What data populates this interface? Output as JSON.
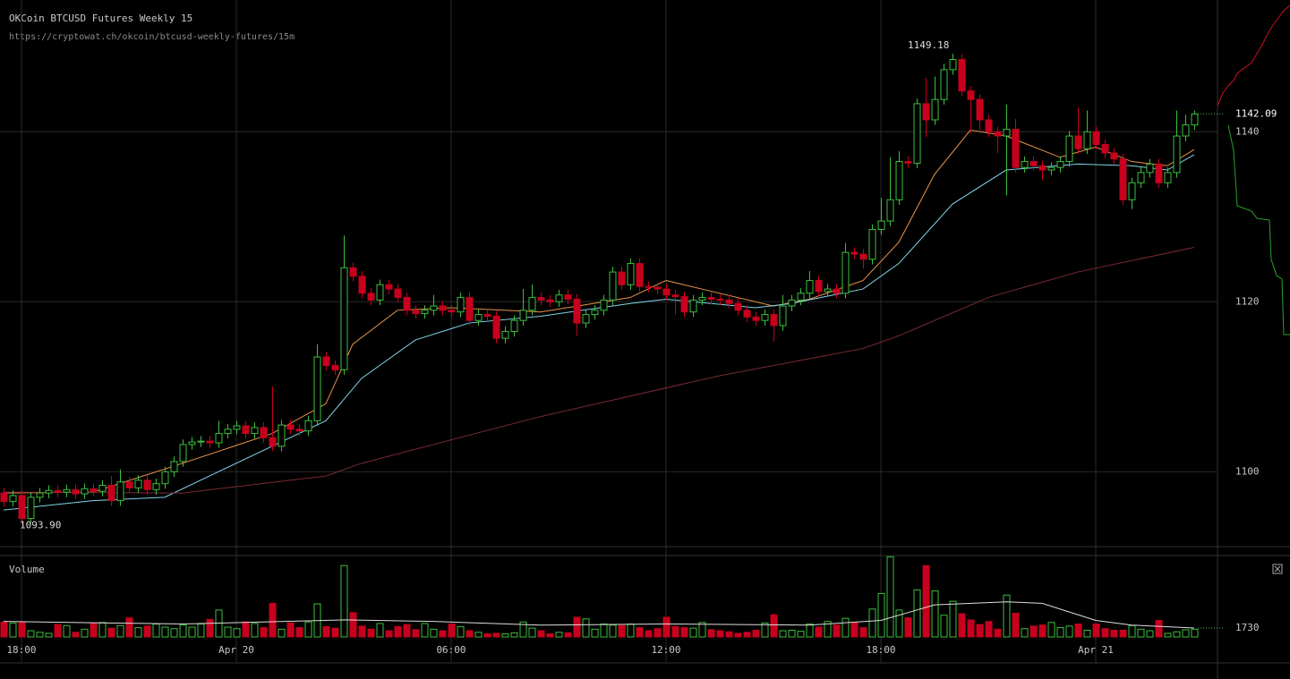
{
  "chart_data": {
    "type": "candlestick",
    "title": "OKCoin BTCUSD Futures Weekly 15",
    "subtitle": "https://cryptowat.ch/okcoin/btcusd-weekly-futures/15m",
    "volume_label": "Volume",
    "up_color": "#3cbf3c",
    "down_color": "#c8001e",
    "ylim": [
      1091.3,
      1155.5
    ],
    "yticks": [
      1100,
      1120,
      1140
    ],
    "grid": true,
    "vlim": [
      0,
      15570
    ],
    "xticks": [
      {
        "value": 2,
        "label": "18:00"
      },
      {
        "value": 26,
        "label": "Apr 20"
      },
      {
        "value": 50,
        "label": "06:00"
      },
      {
        "value": 74,
        "label": "12:00"
      },
      {
        "value": 98,
        "label": "18:00"
      },
      {
        "value": 122,
        "label": "Apr 21"
      }
    ],
    "extreme_labels": [
      {
        "index": 106,
        "value": 1149.18,
        "label": "1149.18"
      },
      {
        "index": 2,
        "value": 1093.9,
        "label": "1093.90"
      }
    ],
    "open": [
      1097.5,
      1096.5,
      1097.2,
      1094.5,
      1097.0,
      1097.5,
      1097.8,
      1097.6,
      1097.9,
      1097.4,
      1098.0,
      1097.7,
      1098.4,
      1096.6,
      1098.8,
      1098.1,
      1099.0,
      1097.9,
      1098.6,
      1100.0,
      1101.2,
      1103.2,
      1103.5,
      1103.6,
      1103.4,
      1104.5,
      1105.0,
      1105.4,
      1104.5,
      1105.2,
      1104.0,
      1103.0,
      1105.5,
      1105.0,
      1104.8,
      1106.0,
      1113.5,
      1112.5,
      1112.0,
      1124.0,
      1123.0,
      1121.0,
      1120.2,
      1122.0,
      1121.5,
      1120.5,
      1119.0,
      1118.6,
      1119.0,
      1119.5,
      1119.0,
      1118.8,
      1120.5,
      1117.8,
      1118.5,
      1118.3,
      1115.7,
      1116.5,
      1117.8,
      1119.0,
      1120.5,
      1120.2,
      1120.0,
      1120.8,
      1120.3,
      1117.5,
      1118.5,
      1119.0,
      1120.2,
      1123.5,
      1122.0,
      1124.5,
      1121.8,
      1121.7,
      1121.5,
      1120.8,
      1120.6,
      1118.8,
      1120.2,
      1120.5,
      1120.3,
      1120.2,
      1119.8,
      1119.0,
      1118.2,
      1117.8,
      1118.5,
      1117.2,
      1119.5,
      1120.2,
      1121.0,
      1122.5,
      1121.2,
      1121.5,
      1121.0,
      1125.8,
      1125.6,
      1125.0,
      1128.5,
      1129.5,
      1132.0,
      1136.5,
      1136.3,
      1143.3,
      1141.4,
      1143.8,
      1147.3,
      1148.5,
      1144.8,
      1143.8,
      1141.4,
      1140.0,
      1139.5,
      1140.3,
      1135.8,
      1136.5,
      1136.0,
      1135.5,
      1135.8,
      1136.5,
      1139.5,
      1138.0,
      1140.0,
      1138.5,
      1137.5,
      1136.8,
      1132.0,
      1134.0,
      1135.2,
      1136.2,
      1134.0,
      1135.2,
      1139.5,
      1140.8
    ],
    "high": [
      1098.1,
      1097.8,
      1097.8,
      1097.6,
      1098.1,
      1098.4,
      1098.4,
      1098.5,
      1098.5,
      1098.6,
      1098.6,
      1099.0,
      1099.5,
      1100.3,
      1099.4,
      1099.6,
      1099.6,
      1099.2,
      1100.6,
      1101.8,
      1103.8,
      1104.1,
      1104.2,
      1104.2,
      1106.0,
      1105.6,
      1106.0,
      1106.0,
      1105.8,
      1105.8,
      1110.0,
      1106.1,
      1106.1,
      1105.6,
      1106.6,
      1115.0,
      1114.1,
      1113.1,
      1127.8,
      1124.6,
      1123.6,
      1121.6,
      1122.6,
      1122.6,
      1122.1,
      1121.1,
      1119.6,
      1119.6,
      1120.8,
      1120.1,
      1119.6,
      1121.1,
      1121.1,
      1119.1,
      1119.1,
      1118.9,
      1117.1,
      1118.4,
      1121.5,
      1122.0,
      1121.1,
      1120.8,
      1121.4,
      1121.4,
      1120.9,
      1119.1,
      1119.6,
      1120.8,
      1124.1,
      1124.1,
      1125.1,
      1125.1,
      1122.4,
      1122.3,
      1122.1,
      1121.4,
      1121.2,
      1120.8,
      1121.1,
      1121.1,
      1120.9,
      1120.8,
      1120.4,
      1119.6,
      1118.8,
      1119.1,
      1119.1,
      1120.8,
      1120.8,
      1121.6,
      1123.6,
      1123.1,
      1122.1,
      1122.1,
      1126.9,
      1126.4,
      1126.2,
      1129.1,
      1132.2,
      1137.0,
      1137.7,
      1137.1,
      1143.9,
      1146.3,
      1146.5,
      1148.0,
      1149.18,
      1149.1,
      1145.4,
      1144.4,
      1142.0,
      1140.6,
      1143.2,
      1141.5,
      1137.1,
      1137.1,
      1136.6,
      1136.4,
      1137.1,
      1140.1,
      1142.8,
      1142.5,
      1140.6,
      1139.1,
      1138.1,
      1137.4,
      1134.6,
      1135.8,
      1136.8,
      1136.8,
      1135.8,
      1142.5,
      1142.0,
      1142.5
    ],
    "low": [
      1095.9,
      1095.9,
      1093.9,
      1094.0,
      1096.4,
      1096.9,
      1097.0,
      1097.0,
      1096.8,
      1096.8,
      1097.1,
      1097.1,
      1096.0,
      1096.0,
      1097.5,
      1097.5,
      1097.3,
      1097.3,
      1098.0,
      1099.4,
      1100.6,
      1102.6,
      1102.9,
      1102.8,
      1102.8,
      1103.9,
      1104.4,
      1103.9,
      1103.9,
      1103.4,
      1102.4,
      1102.4,
      1104.4,
      1104.2,
      1104.2,
      1105.4,
      1111.9,
      1111.4,
      1111.4,
      1122.4,
      1120.4,
      1119.6,
      1119.6,
      1120.9,
      1119.9,
      1118.4,
      1118.0,
      1118.0,
      1118.4,
      1118.4,
      1118.2,
      1118.2,
      1117.2,
      1117.2,
      1117.7,
      1115.1,
      1115.1,
      1115.9,
      1117.2,
      1118.4,
      1119.6,
      1119.4,
      1119.4,
      1119.7,
      1116.0,
      1116.9,
      1117.9,
      1118.4,
      1119.6,
      1121.4,
      1121.4,
      1121.2,
      1121.1,
      1120.9,
      1120.2,
      1118.5,
      1118.2,
      1118.2,
      1119.6,
      1119.7,
      1119.6,
      1119.2,
      1118.4,
      1117.6,
      1117.2,
      1117.2,
      1115.3,
      1116.6,
      1118.9,
      1119.6,
      1120.4,
      1120.6,
      1120.6,
      1120.4,
      1120.4,
      1125.0,
      1123.9,
      1124.4,
      1127.9,
      1128.9,
      1131.4,
      1135.7,
      1135.7,
      1139.4,
      1140.8,
      1143.2,
      1146.7,
      1144.2,
      1139.8,
      1140.2,
      1139.4,
      1137.5,
      1132.5,
      1135.2,
      1135.2,
      1135.4,
      1134.3,
      1134.9,
      1135.2,
      1135.9,
      1137.4,
      1137.4,
      1137.9,
      1136.9,
      1136.2,
      1131.4,
      1130.9,
      1133.4,
      1134.6,
      1133.4,
      1133.4,
      1134.6,
      1138.9,
      1140.2
    ],
    "close": [
      1096.5,
      1097.2,
      1094.5,
      1097.0,
      1097.5,
      1097.8,
      1097.6,
      1097.9,
      1097.4,
      1098.0,
      1097.7,
      1098.4,
      1096.6,
      1098.8,
      1098.1,
      1099.0,
      1097.9,
      1098.6,
      1100.0,
      1101.2,
      1103.2,
      1103.5,
      1103.6,
      1103.4,
      1104.5,
      1105.0,
      1105.4,
      1104.5,
      1105.2,
      1104.0,
      1103.0,
      1105.5,
      1105.0,
      1104.8,
      1106.0,
      1113.5,
      1112.5,
      1112.0,
      1124.0,
      1123.0,
      1121.0,
      1120.2,
      1122.0,
      1121.5,
      1120.5,
      1119.0,
      1118.6,
      1119.0,
      1119.5,
      1119.0,
      1118.8,
      1120.5,
      1117.8,
      1118.5,
      1118.3,
      1115.7,
      1116.5,
      1117.8,
      1119.0,
      1120.5,
      1120.2,
      1120.0,
      1120.8,
      1120.3,
      1117.5,
      1118.5,
      1119.0,
      1120.2,
      1123.5,
      1122.0,
      1124.5,
      1121.8,
      1121.7,
      1121.5,
      1120.8,
      1120.6,
      1118.8,
      1120.2,
      1120.5,
      1120.3,
      1120.2,
      1119.8,
      1119.0,
      1118.2,
      1117.8,
      1118.5,
      1117.2,
      1119.5,
      1120.2,
      1121.0,
      1122.5,
      1121.2,
      1121.5,
      1121.0,
      1125.8,
      1125.6,
      1125.0,
      1128.5,
      1129.5,
      1132.0,
      1136.5,
      1136.3,
      1143.3,
      1141.4,
      1143.8,
      1147.3,
      1148.5,
      1144.8,
      1143.8,
      1141.4,
      1140.0,
      1139.5,
      1140.3,
      1135.8,
      1136.5,
      1136.0,
      1135.5,
      1135.8,
      1136.5,
      1139.5,
      1138.0,
      1140.0,
      1138.5,
      1137.5,
      1136.8,
      1132.0,
      1134.0,
      1135.2,
      1136.2,
      1134.0,
      1135.2,
      1139.5,
      1140.8,
      1142.09
    ],
    "volume": [
      2900,
      2700,
      2800,
      1200,
      900,
      700,
      2400,
      2200,
      900,
      1500,
      2600,
      2800,
      1700,
      2200,
      3700,
      1800,
      2100,
      2500,
      1900,
      1600,
      2300,
      1900,
      2500,
      3400,
      5200,
      1900,
      1600,
      2900,
      2600,
      1800,
      6500,
      1500,
      2700,
      1800,
      2900,
      6400,
      2000,
      1700,
      13800,
      4700,
      2100,
      1500,
      2600,
      1200,
      2000,
      2400,
      1400,
      2600,
      1500,
      1200,
      2500,
      2000,
      1200,
      900,
      600,
      700,
      600,
      800,
      2900,
      1700,
      1200,
      600,
      900,
      800,
      3800,
      3500,
      1500,
      2500,
      2300,
      2200,
      2500,
      1800,
      1200,
      1600,
      3800,
      2000,
      1800,
      1700,
      2800,
      1400,
      1200,
      1000,
      700,
      900,
      1300,
      2700,
      4300,
      1200,
      1300,
      1100,
      2500,
      1900,
      3000,
      2300,
      3600,
      2700,
      1800,
      5400,
      8400,
      15500,
      5200,
      3700,
      9100,
      13800,
      8900,
      4200,
      6900,
      4500,
      3300,
      2400,
      3000,
      1500,
      8100,
      4600,
      1600,
      2100,
      2300,
      2800,
      1800,
      2100,
      2500,
      1300,
      2500,
      1600,
      1300,
      1300,
      2200,
      1500,
      1200,
      3200,
      700,
      1000,
      1400,
      1500
    ],
    "averages": [
      {
        "color": "#e8944a",
        "x": [
          0,
          10,
          20,
          30,
          36,
          39,
          44,
          50,
          60,
          70,
          74,
          80,
          86,
          90,
          96,
          100,
          104,
          108,
          112,
          118,
          122,
          126,
          130,
          133
        ],
        "values": [
          1097.5,
          1097.6,
          1101,
          1104.5,
          1108,
          1115,
          1119,
          1119.3,
          1118.8,
          1120.5,
          1122.5,
          1121,
          1119.5,
          1120.3,
          1122.5,
          1127,
          1135,
          1140.2,
          1139.5,
          1137,
          1138.2,
          1136.5,
          1136,
          1137.9
        ]
      },
      {
        "color": "#7fd6e8",
        "x": [
          0,
          10,
          18,
          24,
          30,
          36,
          40,
          46,
          52,
          60,
          70,
          74,
          84,
          88,
          96,
          100,
          106,
          112,
          120,
          126,
          130,
          133
        ],
        "values": [
          1095.5,
          1096.6,
          1097,
          1100,
          1103,
          1106,
          1111,
          1115.5,
          1117.5,
          1118.3,
          1119.8,
          1120.3,
          1119.3,
          1119.8,
          1121.5,
          1124.5,
          1131.5,
          1135.5,
          1136.2,
          1136,
          1135.5,
          1137.3
        ]
      },
      {
        "color": "#7a2a33",
        "x": [
          0,
          20,
          36,
          40,
          60,
          80,
          96,
          100,
          110,
          120,
          133
        ],
        "values": [
          1097.6,
          1097.5,
          1099.5,
          1101,
          1106.5,
          1111.3,
          1114.5,
          1116,
          1120.5,
          1123.5,
          1126.4
        ]
      }
    ],
    "volume_ma": {
      "color": "#dddddd",
      "x": [
        0,
        20,
        38,
        48,
        60,
        74,
        90,
        98,
        104,
        112,
        116,
        122,
        126,
        133
      ],
      "values": [
        3000,
        2500,
        3300,
        3000,
        2300,
        2500,
        2300,
        3200,
        6200,
        6800,
        6500,
        3200,
        2300,
        1730
      ]
    }
  }
}
